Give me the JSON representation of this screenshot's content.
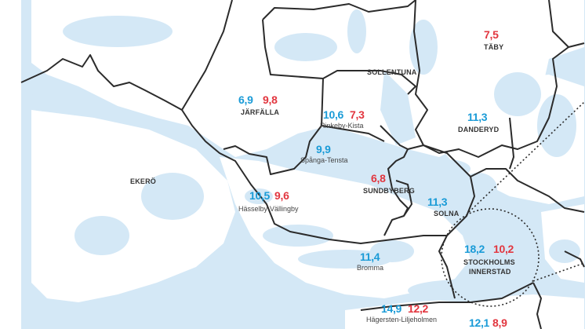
{
  "colors": {
    "water": "#d4e8f6",
    "land": "#ffffff",
    "border": "#2b2b2b",
    "value_blue": "#1a9bd7",
    "value_red": "#e2363f"
  },
  "areas": {
    "ekero": {
      "name": "EKERÖ"
    },
    "jarfalla": {
      "name": "JÄRFÄLLA",
      "value_blue": "6,9",
      "value_red": "9,8"
    },
    "sollentuna": {
      "name": "SOLLENTUNA"
    },
    "taby": {
      "name": "TÄBY",
      "value_red": "7,5"
    },
    "danderyd": {
      "name": "DANDERYD",
      "value_blue": "11,3"
    },
    "rinkeby": {
      "name": "Rinkeby-Kista",
      "value_blue": "10,6",
      "value_red": "7,3"
    },
    "spanga": {
      "name": "Spånga-Tensta",
      "value_blue": "9,9"
    },
    "sundbyberg": {
      "name": "SUNDBYBERG",
      "value_red": "6,8"
    },
    "solna": {
      "name": "SOLNA",
      "value_blue": "11,3"
    },
    "hasselby": {
      "name": "Hässelby-Vällingby",
      "value_blue": "10,5",
      "value_red": "9,6"
    },
    "bromma": {
      "name": "Bromma",
      "value_blue": "11,4"
    },
    "innerstad": {
      "name_line1": "STOCKHOLMS",
      "name_line2": "INNERSTAD",
      "value_blue": "18,2",
      "value_red": "10,2"
    },
    "hagersten": {
      "name": "Hägersten-Liljeholmen",
      "value_blue": "14,9",
      "value_red": "12,2"
    },
    "bottom_right": {
      "value_blue": "12,1",
      "value_red": "8,9"
    }
  }
}
